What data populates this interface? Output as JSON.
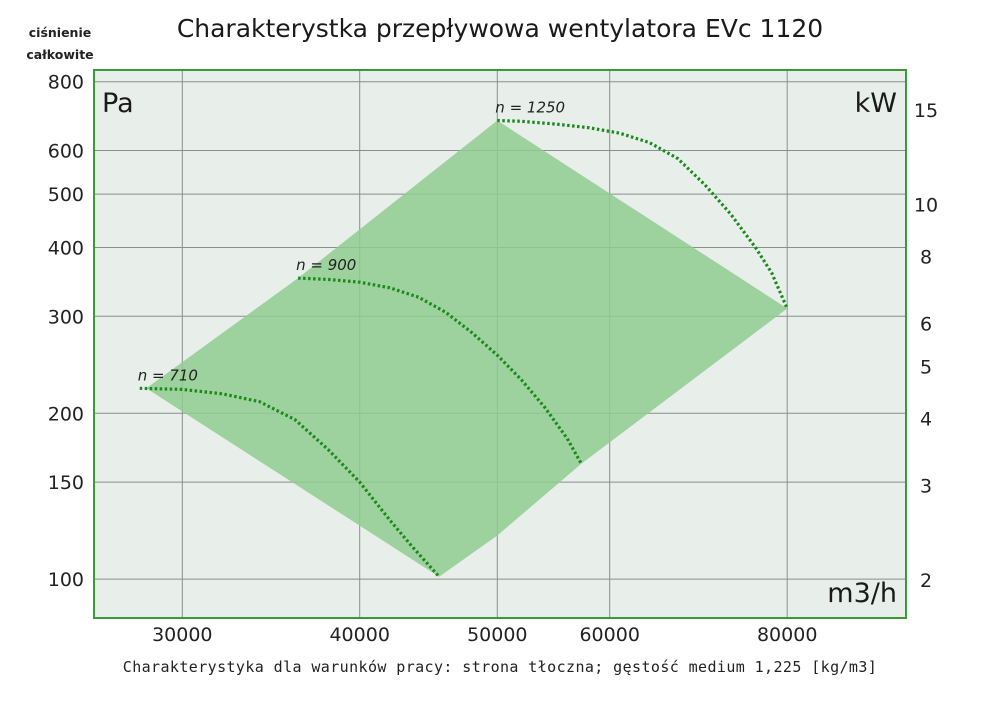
{
  "chart_data": {
    "type": "line",
    "title": "Charakterystka przepływowa wentylatora EVc 1120",
    "subtitle": "Charakterystyka dla warunków pracy: strona tłoczna; gęstość medium 1,225 [kg/m3]",
    "ylabel": "ciśnienie\ncałkowite",
    "ylabel_lines": [
      "ciśnienie",
      "całkowite"
    ],
    "y_unit": "Pa",
    "y2_unit": "kW",
    "x_unit": "m3/h",
    "x_scale": "log",
    "y_scale": "log",
    "y2_scale": "log",
    "xlim": [
      26000,
      97000
    ],
    "ylim": [
      85,
      840
    ],
    "y2lim": [
      1.7,
      17.8
    ],
    "x_ticks": [
      30000,
      40000,
      50000,
      60000,
      80000
    ],
    "x_tick_labels": [
      "30000",
      "40000",
      "50000",
      "60000",
      "80000"
    ],
    "y_ticks": [
      100,
      150,
      200,
      300,
      400,
      500,
      600,
      800
    ],
    "y_tick_labels": [
      "100",
      "150",
      "200",
      "300",
      "400",
      "500",
      "600",
      "800"
    ],
    "y2_ticks": [
      2,
      3,
      4,
      5,
      6,
      8,
      10,
      15
    ],
    "y2_tick_labels": [
      "2",
      "3",
      "4",
      "5",
      "6",
      "8",
      "10",
      "15"
    ],
    "grid": true,
    "colors": {
      "plot_bg": "#e8eeea",
      "frame": "#3a9a3a",
      "grid": "#8a8f8c",
      "area": "#8fcb8f",
      "curve": "#1a8a1a"
    },
    "operating_area": [
      [
        45500,
        101
      ],
      [
        50000,
        120
      ],
      [
        57300,
        162
      ],
      [
        80000,
        310
      ],
      [
        50000,
        680
      ],
      [
        36200,
        352
      ],
      [
        28300,
        222
      ]
    ],
    "series": [
      {
        "name": "n = 710",
        "x": [
          28000,
          30000,
          32000,
          34000,
          36000,
          38000,
          40000,
          42000,
          43500,
          45500
        ],
        "y": [
          222,
          221,
          217,
          210,
          195,
          172,
          150,
          128,
          115,
          101
        ]
      },
      {
        "name": "n = 900",
        "x": [
          36200,
          38000,
          40000,
          42000,
          44000,
          46000,
          48000,
          50000,
          52000,
          54000,
          56000,
          57300
        ],
        "y": [
          352,
          350,
          346,
          338,
          325,
          305,
          280,
          255,
          230,
          205,
          180,
          162
        ]
      },
      {
        "name": "n = 1250",
        "x": [
          50000,
          52000,
          55000,
          58000,
          61000,
          64000,
          67000,
          70000,
          73000,
          76000,
          78000,
          80000
        ],
        "y": [
          680,
          678,
          670,
          660,
          645,
          620,
          580,
          520,
          460,
          400,
          360,
          310
        ]
      }
    ]
  }
}
